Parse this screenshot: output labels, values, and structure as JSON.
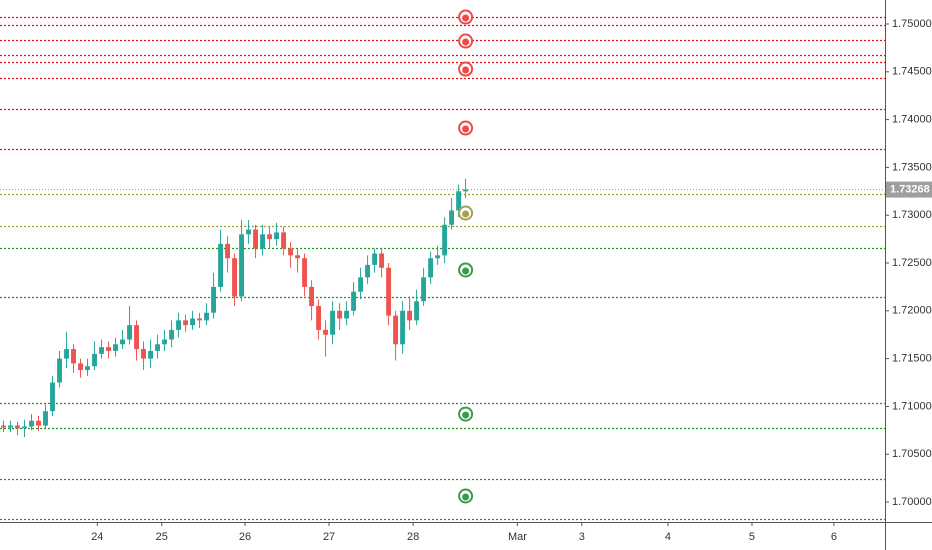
{
  "chart_data": {
    "type": "candlestick",
    "up_color": "#26a69a",
    "down_color": "#ef5350",
    "xlim": [
      0,
      126.4
    ],
    "xticks": [
      {
        "value": 13.9,
        "label": "24"
      },
      {
        "value": 23.1,
        "label": "25"
      },
      {
        "value": 35,
        "label": "26"
      },
      {
        "value": 47,
        "label": "27"
      },
      {
        "value": 59,
        "label": "28"
      },
      {
        "value": 73.9,
        "label": "Mar"
      },
      {
        "value": 83.1,
        "label": "3"
      },
      {
        "value": 95.4,
        "label": "4"
      },
      {
        "value": 107.4,
        "label": "5"
      },
      {
        "value": 119.1,
        "label": "6"
      }
    ],
    "ylim": [
      1.69791,
      1.75251
    ],
    "yticks": [
      {
        "value": 1.7,
        "label": "1.70000"
      },
      {
        "value": 1.705,
        "label": "1.70500"
      },
      {
        "value": 1.71,
        "label": "1.71000"
      },
      {
        "value": 1.715,
        "label": "1.71500"
      },
      {
        "value": 1.72,
        "label": "1.72000"
      },
      {
        "value": 1.725,
        "label": "1.72500"
      },
      {
        "value": 1.73,
        "label": "1.73000"
      },
      {
        "value": 1.735,
        "label": "1.73500"
      },
      {
        "value": 1.74,
        "label": "1.74000"
      },
      {
        "value": 1.745,
        "label": "1.74500"
      },
      {
        "value": 1.75,
        "label": "1.75000"
      }
    ],
    "current_price": {
      "value": 1.73268,
      "label": "1.73268"
    },
    "open": [
      1.708,
      1.7078,
      1.708,
      1.7077,
      1.7079,
      1.7085,
      1.708,
      1.7095,
      1.7125,
      1.715,
      1.716,
      1.7145,
      1.7138,
      1.7142,
      1.7155,
      1.7162,
      1.7158,
      1.7165,
      1.717,
      1.7185,
      1.716,
      1.715,
      1.7158,
      1.7165,
      1.717,
      1.718,
      1.719,
      1.7185,
      1.7192,
      1.719,
      1.7198,
      1.7225,
      1.727,
      1.7255,
      1.7215,
      1.728,
      1.7285,
      1.7265,
      1.728,
      1.7275,
      1.7282,
      1.7265,
      1.7258,
      1.7255,
      1.7225,
      1.7205,
      1.718,
      1.7175,
      1.72,
      1.7192,
      1.72,
      1.722,
      1.7235,
      1.7248,
      1.726,
      1.7245,
      1.7195,
      1.7165,
      1.72,
      1.719,
      1.721,
      1.7235,
      1.7255,
      1.7258,
      1.729,
      1.7305,
      1.7325
    ],
    "high": [
      1.7085,
      1.7085,
      1.7084,
      1.7086,
      1.7092,
      1.709,
      1.7102,
      1.7132,
      1.7158,
      1.7178,
      1.7165,
      1.715,
      1.715,
      1.7168,
      1.717,
      1.7168,
      1.7172,
      1.718,
      1.7205,
      1.719,
      1.7168,
      1.717,
      1.7175,
      1.718,
      1.719,
      1.7198,
      1.7196,
      1.72,
      1.7198,
      1.7208,
      1.724,
      1.7285,
      1.7278,
      1.726,
      1.7295,
      1.7295,
      1.729,
      1.729,
      1.7288,
      1.7292,
      1.7288,
      1.7272,
      1.7265,
      1.726,
      1.7232,
      1.7212,
      1.719,
      1.721,
      1.7208,
      1.721,
      1.723,
      1.7245,
      1.7258,
      1.7265,
      1.7265,
      1.725,
      1.72,
      1.721,
      1.7215,
      1.7222,
      1.7245,
      1.7262,
      1.7268,
      1.7298,
      1.7318,
      1.7332,
      1.7338
    ],
    "low": [
      1.7073,
      1.7073,
      1.707,
      1.7068,
      1.7075,
      1.7074,
      1.7076,
      1.709,
      1.712,
      1.714,
      1.7135,
      1.713,
      1.7132,
      1.7138,
      1.715,
      1.715,
      1.7152,
      1.716,
      1.7165,
      1.7148,
      1.7138,
      1.714,
      1.715,
      1.7158,
      1.7162,
      1.7172,
      1.7178,
      1.718,
      1.7182,
      1.7185,
      1.7192,
      1.722,
      1.724,
      1.7205,
      1.721,
      1.727,
      1.7255,
      1.7258,
      1.7265,
      1.7268,
      1.7258,
      1.7245,
      1.724,
      1.7215,
      1.719,
      1.717,
      1.7152,
      1.7165,
      1.718,
      1.7185,
      1.7195,
      1.7212,
      1.7228,
      1.724,
      1.7235,
      1.7185,
      1.7148,
      1.7155,
      1.718,
      1.7185,
      1.7205,
      1.7228,
      1.7248,
      1.725,
      1.7285,
      1.7298,
      1.7318
    ],
    "close": [
      1.7078,
      1.708,
      1.7077,
      1.7079,
      1.7085,
      1.708,
      1.7095,
      1.7125,
      1.715,
      1.716,
      1.7145,
      1.7138,
      1.7142,
      1.7155,
      1.7162,
      1.7158,
      1.7165,
      1.717,
      1.7185,
      1.716,
      1.715,
      1.7158,
      1.7165,
      1.717,
      1.718,
      1.719,
      1.7185,
      1.7192,
      1.719,
      1.7198,
      1.7225,
      1.727,
      1.7255,
      1.7215,
      1.728,
      1.7285,
      1.7265,
      1.728,
      1.7275,
      1.7282,
      1.7265,
      1.7258,
      1.7255,
      1.7225,
      1.7205,
      1.718,
      1.7175,
      1.72,
      1.7192,
      1.72,
      1.722,
      1.7235,
      1.7248,
      1.726,
      1.7245,
      1.7195,
      1.7165,
      1.72,
      1.719,
      1.721,
      1.7235,
      1.7255,
      1.7258,
      1.729,
      1.7305,
      1.7325,
      1.7327
    ],
    "levels": {
      "values": [
        1.75073,
        1.7499,
        1.74833,
        1.74676,
        1.74603,
        1.74435,
        1.74111,
        1.73692,
        1.73222,
        1.72887,
        1.72657,
        1.72144,
        1.71036,
        1.70774,
        1.70241,
        1.69822
      ],
      "colors": [
        "#e01010",
        "#e01010",
        "#e01010",
        "#e01010",
        "#e01010",
        "#e01010",
        "#e01010",
        "#e01010",
        "#a09a30",
        "#a09a30",
        "#1a9a1a",
        "#1a9a1a",
        "#1a9a1a",
        "#1a9a1a",
        "#1a9a1a",
        "#1a9a1a"
      ]
    },
    "markers": {
      "x": 66,
      "values": [
        1.75073,
        1.74822,
        1.74529,
        1.73912,
        1.73023,
        1.72427,
        1.7092,
        1.70063
      ],
      "colors": [
        "#f04848",
        "#f04848",
        "#f04848",
        "#f04848",
        "#a8a050",
        "#3a9a4a",
        "#3a9a4a",
        "#3a9a4a"
      ]
    }
  }
}
